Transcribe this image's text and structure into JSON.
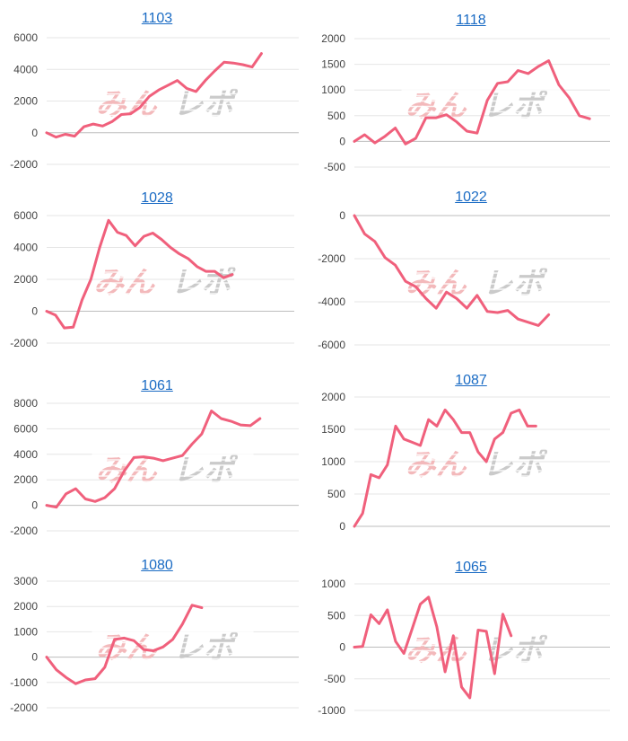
{
  "colors": {
    "line": "#f0607c",
    "title": "#1a6bc4",
    "watermark_red": "#f3b6b8",
    "watermark_gray": "#c8c8c8"
  },
  "watermark_text": "みんレポ",
  "chart_data": [
    {
      "type": "line",
      "title": "1103",
      "ylim": [
        -2000,
        6000
      ],
      "yticks": [
        -2000,
        0,
        2000,
        4000,
        6000
      ],
      "values": [
        0,
        -280,
        -100,
        -220,
        380,
        550,
        420,
        700,
        1150,
        1200,
        1600,
        2300,
        2700,
        3000,
        3300,
        2800,
        2600,
        3300,
        3900,
        4450,
        4400,
        4300,
        4150,
        5000
      ]
    },
    {
      "type": "line",
      "title": "1118",
      "ylim": [
        -500,
        2000
      ],
      "yticks": [
        -500,
        0,
        500,
        1000,
        1500,
        2000
      ],
      "values": [
        0,
        130,
        -30,
        100,
        260,
        -50,
        60,
        460,
        460,
        520,
        380,
        200,
        160,
        800,
        1130,
        1160,
        1380,
        1320,
        1460,
        1570,
        1100,
        850,
        500,
        440
      ]
    },
    {
      "type": "line",
      "title": "1028",
      "ylim": [
        -2000,
        6000
      ],
      "yticks": [
        -2000,
        0,
        2000,
        4000,
        6000
      ],
      "values": [
        0,
        -250,
        -1050,
        -1000,
        700,
        2000,
        4000,
        5700,
        4950,
        4750,
        4100,
        4700,
        4900,
        4500,
        4000,
        3600,
        3300,
        2800,
        2500,
        2500,
        2100,
        2300
      ]
    },
    {
      "type": "line",
      "title": "1022",
      "ylim": [
        -6000,
        0
      ],
      "yticks": [
        -6000,
        -4000,
        -2000,
        0
      ],
      "values": [
        0,
        -850,
        -1200,
        -1950,
        -2300,
        -3050,
        -3300,
        -3850,
        -4300,
        -3550,
        -3850,
        -4300,
        -3700,
        -4450,
        -4500,
        -4400,
        -4800,
        -4950,
        -5100,
        -4600
      ]
    },
    {
      "type": "line",
      "title": "1061",
      "ylim": [
        -2000,
        8000
      ],
      "yticks": [
        -2000,
        0,
        2000,
        4000,
        6000,
        8000
      ],
      "values": [
        0,
        -150,
        900,
        1300,
        500,
        300,
        600,
        1300,
        2700,
        3750,
        3800,
        3700,
        3500,
        3700,
        3900,
        4800,
        5600,
        7400,
        6800,
        6600,
        6300,
        6250,
        6800
      ]
    },
    {
      "type": "line",
      "title": "1087",
      "ylim": [
        0,
        2000
      ],
      "yticks": [
        0,
        500,
        1000,
        1500,
        2000
      ],
      "values": [
        0,
        200,
        800,
        750,
        950,
        1550,
        1350,
        1300,
        1250,
        1650,
        1550,
        1800,
        1650,
        1450,
        1450,
        1150,
        1000,
        1350,
        1450,
        1750,
        1800,
        1550,
        1550
      ]
    },
    {
      "type": "line",
      "title": "1080",
      "ylim": [
        -2000,
        3000
      ],
      "yticks": [
        -2000,
        -1000,
        0,
        1000,
        2000,
        3000
      ],
      "values": [
        0,
        -500,
        -800,
        -1050,
        -900,
        -850,
        -400,
        700,
        750,
        650,
        300,
        250,
        400,
        700,
        1300,
        2050,
        1950
      ]
    },
    {
      "type": "line",
      "title": "1065",
      "ylim": [
        -1000,
        1000
      ],
      "yticks": [
        -1000,
        -500,
        0,
        500,
        1000
      ],
      "values": [
        0,
        10,
        510,
        370,
        590,
        90,
        -100,
        290,
        680,
        790,
        320,
        -390,
        180,
        -630,
        -800,
        270,
        250,
        -420,
        520,
        180
      ]
    }
  ]
}
